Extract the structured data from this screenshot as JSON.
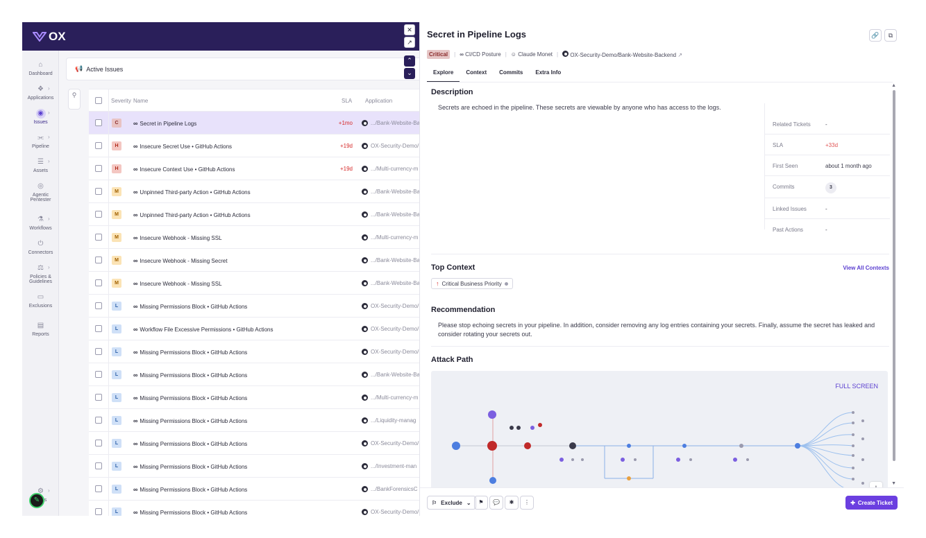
{
  "brand": {
    "name": "OX"
  },
  "sidebar": {
    "items": [
      {
        "label": "Dashboard",
        "icon": "home-icon"
      },
      {
        "label": "Applications",
        "icon": "applications-icon"
      },
      {
        "label": "Issues",
        "icon": "issues-icon",
        "active": true
      },
      {
        "label": "Pipeline",
        "icon": "pipeline-icon"
      },
      {
        "label": "Assets",
        "icon": "assets-icon"
      },
      {
        "label": "Agentic Pentester",
        "icon": "pentester-icon"
      },
      {
        "label": "Workflows",
        "icon": "workflows-icon"
      },
      {
        "label": "Connectors",
        "icon": "connectors-icon"
      },
      {
        "label": "Policies & Guidelines",
        "icon": "policies-icon"
      },
      {
        "label": "Exclusions",
        "icon": "exclusions-icon"
      },
      {
        "label": "Reports",
        "icon": "reports-icon"
      }
    ],
    "settings_label": "gs"
  },
  "list": {
    "header_title": "Active Issues",
    "columns": {
      "severity": "Severity",
      "name": "Name",
      "sla": "SLA",
      "application": "Application"
    },
    "rows": [
      {
        "sev": "C",
        "name": "Secret in Pipeline Logs",
        "sla": "+1mo",
        "app": ".../Bank-Website-Ba",
        "selected": true
      },
      {
        "sev": "H",
        "name": "Insecure Secret Use • GitHub Actions",
        "sla": "+19d",
        "app": "OX-Security-Demo/"
      },
      {
        "sev": "H",
        "name": "Insecure Context Use • GitHub Actions",
        "sla": "+19d",
        "app": ".../Multi-currency-m"
      },
      {
        "sev": "M",
        "name": "Unpinned Third-party Action • GitHub Actions",
        "sla": "",
        "app": ".../Bank-Website-Ba"
      },
      {
        "sev": "M",
        "name": "Unpinned Third-party Action • GitHub Actions",
        "sla": "",
        "app": ".../Bank-Website-Ba"
      },
      {
        "sev": "M",
        "name": "Insecure Webhook - Missing SSL",
        "sla": "",
        "app": ".../Multi-currency-m"
      },
      {
        "sev": "M",
        "name": "Insecure Webhook - Missing Secret",
        "sla": "",
        "app": ".../Bank-Website-Ba"
      },
      {
        "sev": "M",
        "name": "Insecure Webhook - Missing SSL",
        "sla": "",
        "app": ".../Bank-Website-Ba"
      },
      {
        "sev": "L",
        "name": "Missing Permissions Block • GitHub Actions",
        "sla": "",
        "app": "OX-Security-Demo/"
      },
      {
        "sev": "L",
        "name": "Workflow File Excessive Permissions • GitHub Actions",
        "sla": "",
        "app": "OX-Security-Demo/"
      },
      {
        "sev": "L",
        "name": "Missing Permissions Block • GitHub Actions",
        "sla": "",
        "app": "OX-Security-Demo/"
      },
      {
        "sev": "L",
        "name": "Missing Permissions Block • GitHub Actions",
        "sla": "",
        "app": ".../Bank-Website-Ba"
      },
      {
        "sev": "L",
        "name": "Missing Permissions Block • GitHub Actions",
        "sla": "",
        "app": ".../Multi-currency-m"
      },
      {
        "sev": "L",
        "name": "Missing Permissions Block • GitHub Actions",
        "sla": "",
        "app": ".../Liquidity-manag"
      },
      {
        "sev": "L",
        "name": "Missing Permissions Block • GitHub Actions",
        "sla": "",
        "app": "OX-Security-Demo/"
      },
      {
        "sev": "L",
        "name": "Missing Permissions Block • GitHub Actions",
        "sla": "",
        "app": ".../Investment-man"
      },
      {
        "sev": "L",
        "name": "Missing Permissions Block • GitHub Actions",
        "sla": "",
        "app": ".../BankForensicsC"
      },
      {
        "sev": "L",
        "name": "Missing Permissions Block • GitHub Actions",
        "sla": "",
        "app": "OX-Security-Demo/"
      }
    ]
  },
  "panel": {
    "title": "Secret in Pipeline Logs",
    "severity": "Critical",
    "category": "CI/CD Posture",
    "owner": "Claude Monet",
    "repo": "OX-Security-Demo/Bank-Website-Backend",
    "tabs": [
      "Explore",
      "Context",
      "Commits",
      "Extra Info"
    ],
    "description_title": "Description",
    "description": "Secrets are echoed in the pipeline. These secrets are viewable by anyone who has access to the logs.",
    "details": [
      {
        "key": "Related Tickets",
        "value": "-"
      },
      {
        "key": "SLA",
        "value": "+33d"
      },
      {
        "key": "First Seen",
        "value": "about 1 month ago"
      },
      {
        "key": "Commits",
        "value": "3"
      },
      {
        "key": "Linked Issues",
        "value": "-"
      },
      {
        "key": "Past Actions",
        "value": "-"
      }
    ],
    "top_context_title": "Top Context",
    "view_all_contexts": "View All Contexts",
    "context_chip": "Critical Business Priority",
    "recommendation_title": "Recommendation",
    "recommendation": "Please stop echoing secrets in your pipeline. In addition, consider removing any log entries containing your secrets. Finally, assume the secret has leaked and consider rotating your secrets out.",
    "attack_path_title": "Attack Path",
    "full_screen": "FULL SCREEN",
    "footer": {
      "exclude": "Exclude",
      "create_ticket": "Create Ticket"
    }
  },
  "colors": {
    "accent": "#6b3fe0",
    "brand_bar": "#2a1f5a",
    "critical": "#d62a2a"
  }
}
